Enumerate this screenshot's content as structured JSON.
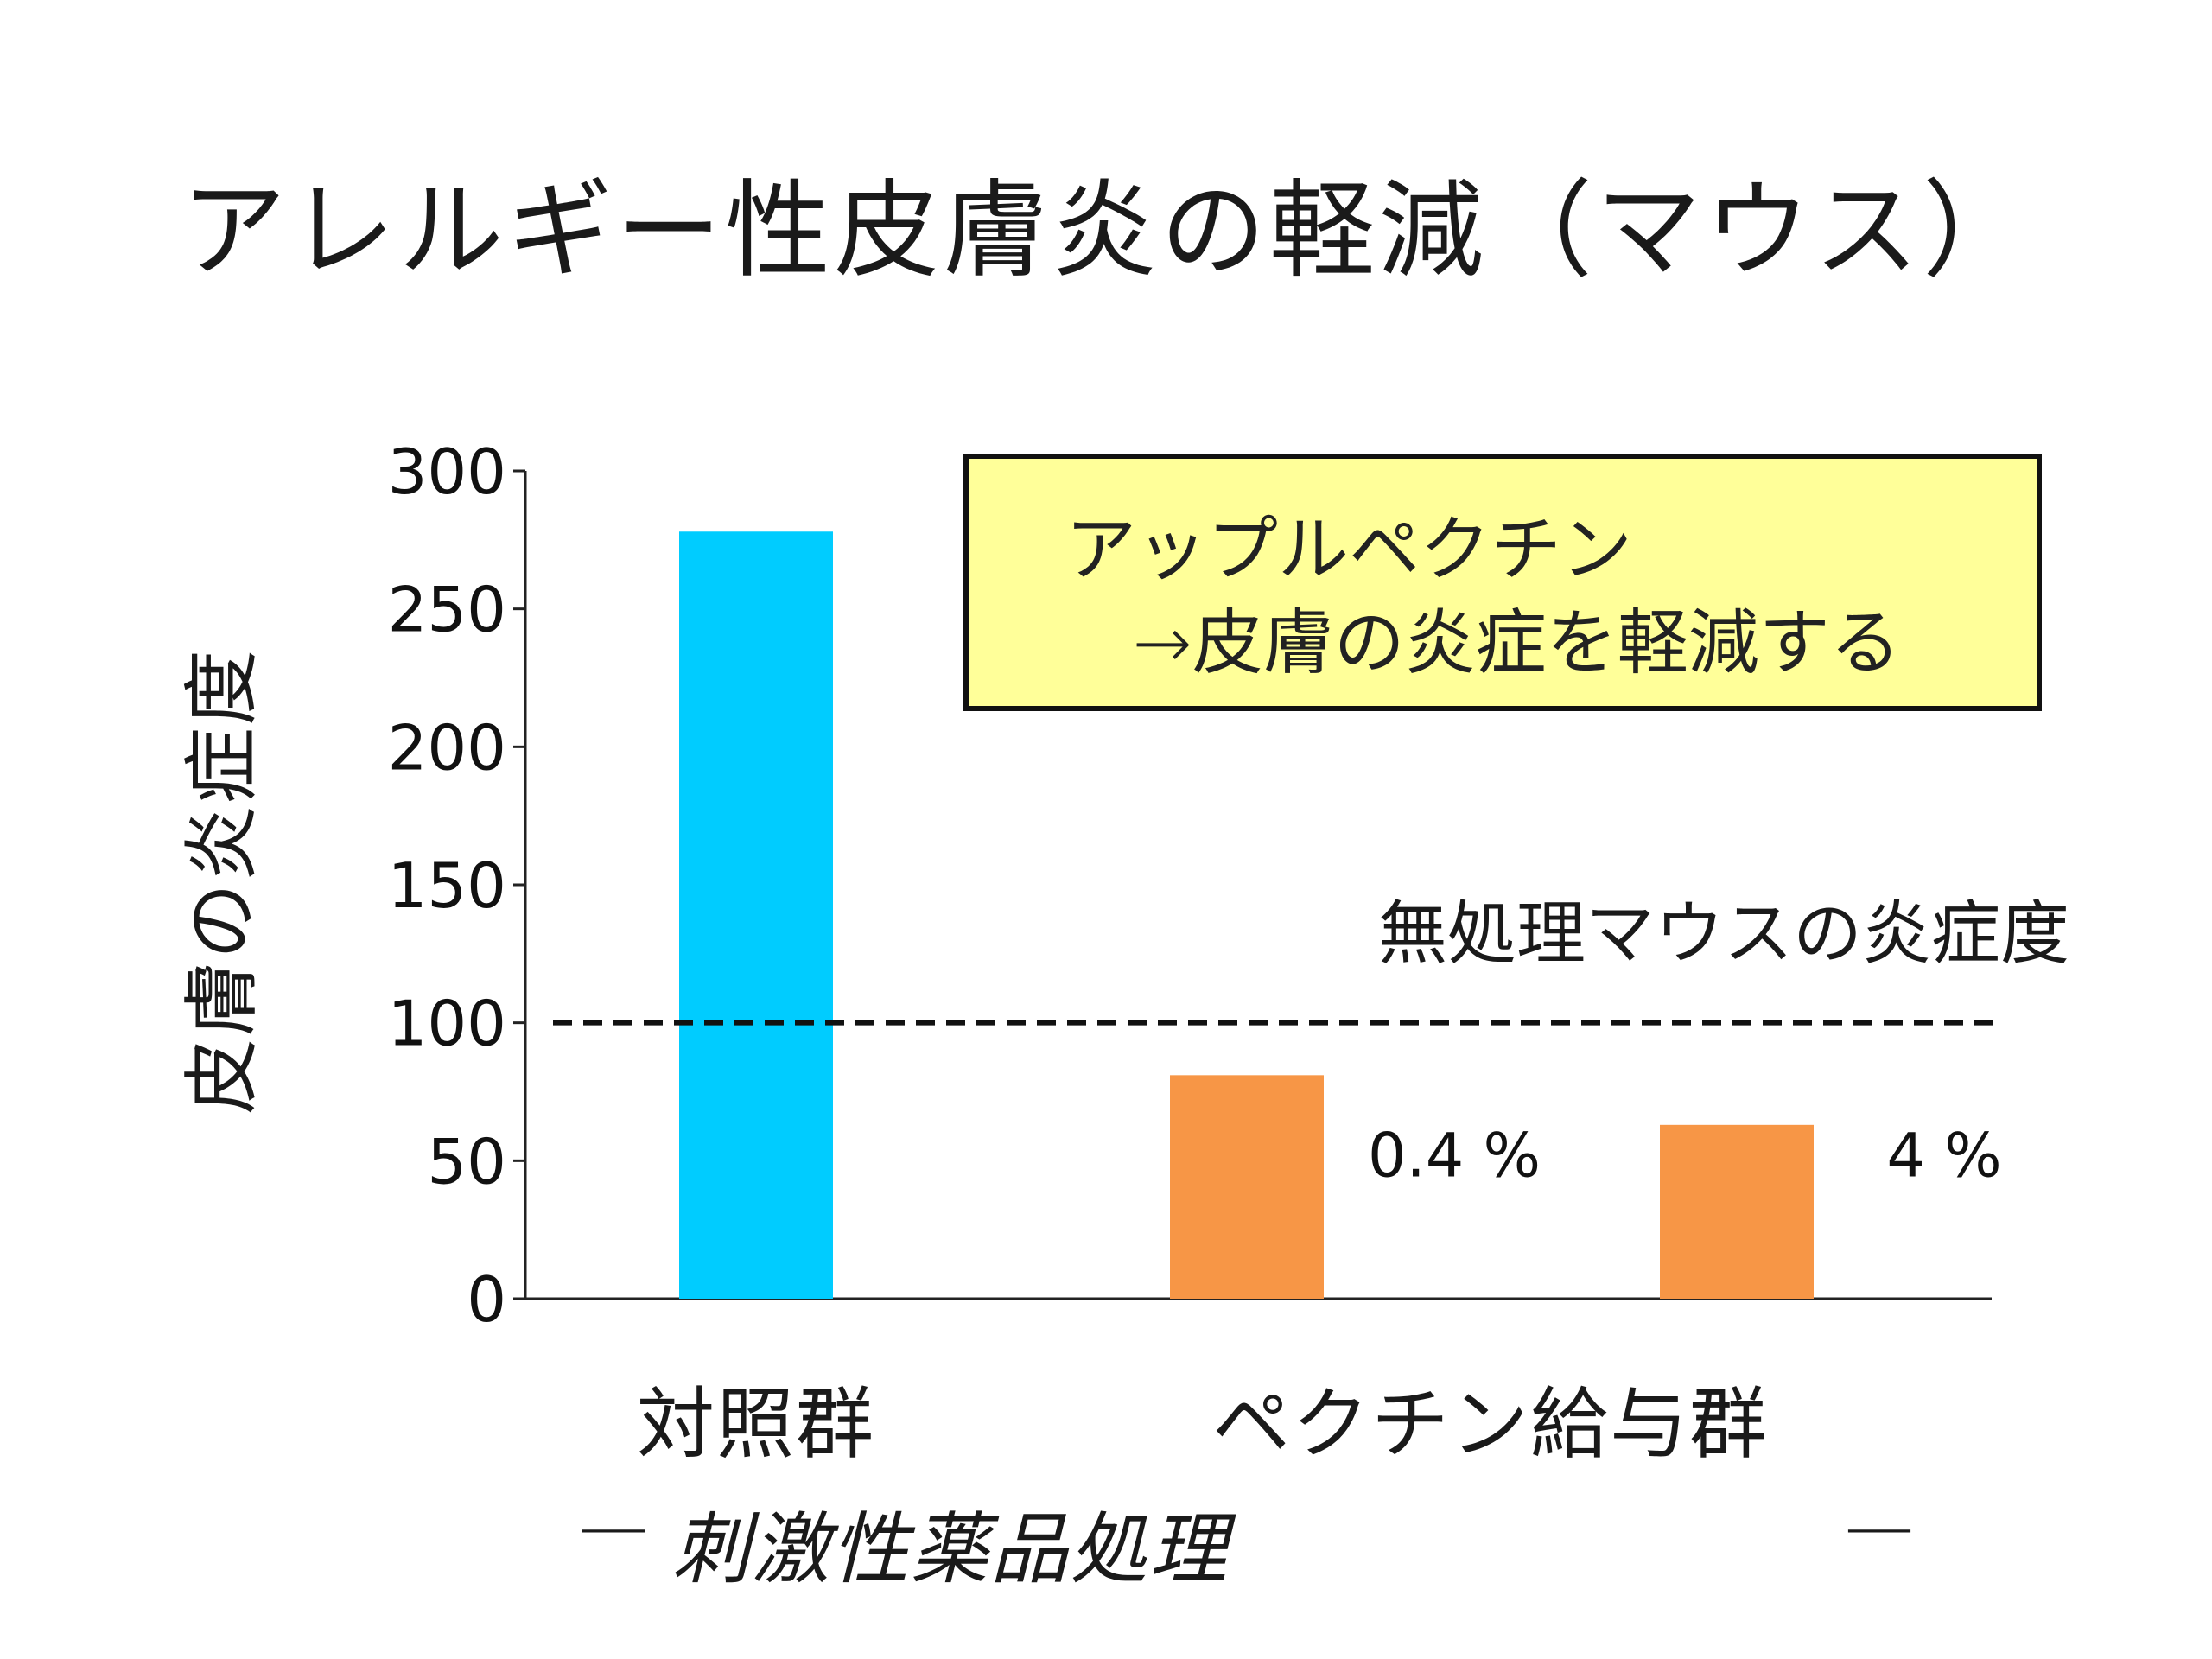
{
  "title": "アレルギー性皮膚炎の軽減（マウス）",
  "note": {
    "line1": "アップルペクチン",
    "line2": "→皮膚の炎症を軽減する"
  },
  "xaxis": {
    "cat_control": "対照群",
    "cat_pectin": "ペクチン給与群",
    "treatment_label": "刺激性薬品処理",
    "treatment_marks": [
      "—",
      "—"
    ]
  },
  "chart_data": {
    "type": "bar",
    "title": "アレルギー性皮膚炎の軽減（マウス）",
    "ylabel": "皮膚の炎症度",
    "ylim": [
      0,
      300
    ],
    "yticks": [
      "0",
      "50",
      "100",
      "150",
      "200",
      "250",
      "300"
    ],
    "grid": false,
    "categories": [
      "対照群",
      "ペクチン給与群 0.4 %",
      "ペクチン給与群 4 %"
    ],
    "values": [
      278,
      81,
      63
    ],
    "bar_colors": [
      "#00ccff",
      "#f79646",
      "#f79646"
    ],
    "bar_labels": [
      "",
      "0.4 %",
      "4 %"
    ],
    "reference_line": {
      "value": 100,
      "label": "無処理マウスの炎症度",
      "style": "dashed"
    }
  }
}
